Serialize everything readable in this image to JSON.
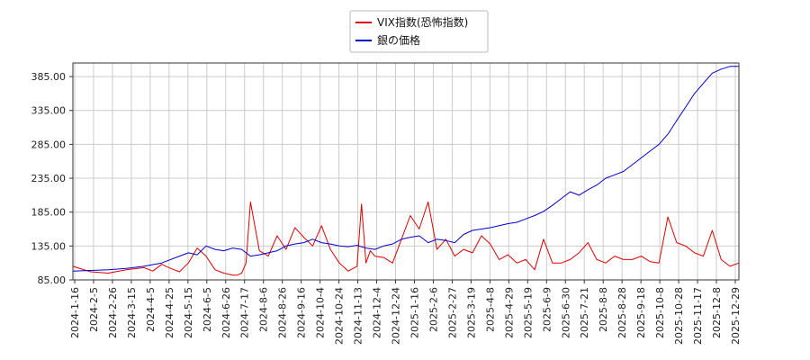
{
  "chart_data": {
    "type": "line",
    "title": "",
    "xlabel": "",
    "ylabel": "",
    "ylim": [
      85.0,
      405.0
    ],
    "y_ticks": [
      "85.00",
      "135.00",
      "185.00",
      "235.00",
      "285.00",
      "335.00",
      "385.00"
    ],
    "x_ticks": [
      "2024-1-16",
      "2024-2-5",
      "2024-2-26",
      "2024-3-15",
      "2024-4-5",
      "2024-4-25",
      "2024-5-15",
      "2024-6-5",
      "2024-6-26",
      "2024-7-17",
      "2024-8-6",
      "2024-8-26",
      "2024-9-16",
      "2024-10-4",
      "2024-10-24",
      "2024-11-13",
      "2024-12-4",
      "2024-12-24",
      "2025-1-16",
      "2025-2-6",
      "2025-2-27",
      "2025-3-19",
      "2025-4-8",
      "2025-4-29",
      "2025-5-19",
      "2025-6-9",
      "2025-6-30",
      "2025-7-21",
      "2025-8-8",
      "2025-8-28",
      "2025-9-18",
      "2025-10-8",
      "2025-10-28",
      "2025-11-17",
      "2025-12-8",
      "2025-12-29"
    ],
    "grid": true,
    "legend_position": "top-center",
    "series": [
      {
        "name": "VIX指数(恐怖指数)",
        "color": "#dd0000",
        "x": [
          0,
          2,
          4,
          6,
          8,
          9,
          10,
          11,
          12,
          13,
          14,
          15,
          16,
          17,
          18,
          18.5,
          19,
          19.5,
          20,
          21,
          22,
          23,
          24,
          25,
          26,
          27,
          28,
          29,
          30,
          31,
          32,
          32.5,
          33,
          33.5,
          34,
          35,
          36,
          37,
          38,
          39,
          40,
          41,
          42,
          43,
          44,
          45,
          46,
          47,
          48,
          49,
          50,
          51,
          52,
          53,
          54,
          55,
          56,
          57,
          58,
          59,
          60,
          61,
          62,
          63,
          64,
          65,
          66,
          67,
          68,
          69,
          70,
          71,
          72,
          73,
          74,
          75
        ],
        "values": [
          105,
          97,
          95,
          100,
          103,
          98,
          108,
          102,
          97,
          110,
          132,
          120,
          100,
          95,
          92,
          92,
          95,
          110,
          200,
          128,
          120,
          150,
          130,
          162,
          148,
          135,
          165,
          130,
          110,
          98,
          105,
          197,
          110,
          128,
          120,
          118,
          110,
          145,
          180,
          160,
          200,
          130,
          145,
          120,
          130,
          125,
          150,
          138,
          115,
          122,
          110,
          115,
          100,
          145,
          110,
          110,
          115,
          125,
          140,
          115,
          110,
          120,
          115,
          115,
          120,
          112,
          110,
          178,
          140,
          135,
          125,
          120,
          158,
          115,
          105,
          110
        ]
      },
      {
        "name": "銀の価格",
        "color": "#0000cc",
        "x": [
          0,
          2,
          4,
          6,
          8,
          10,
          12,
          13,
          14,
          15,
          16,
          17,
          18,
          19,
          20,
          21,
          22,
          23,
          24,
          25,
          26,
          27,
          28,
          29,
          30,
          31,
          32,
          33,
          34,
          35,
          36,
          37,
          38,
          39,
          40,
          41,
          42,
          43,
          44,
          45,
          46,
          47,
          48,
          49,
          50,
          51,
          52,
          53,
          54,
          55,
          56,
          57,
          58,
          59,
          60,
          61,
          62,
          63,
          64,
          65,
          66,
          67,
          68,
          69,
          70,
          71,
          72,
          73,
          74,
          75
        ],
        "values": [
          98,
          99,
          100,
          102,
          105,
          110,
          120,
          125,
          122,
          135,
          130,
          128,
          132,
          130,
          120,
          122,
          125,
          128,
          135,
          138,
          140,
          145,
          140,
          138,
          135,
          134,
          136,
          132,
          130,
          135,
          138,
          145,
          148,
          150,
          140,
          145,
          143,
          140,
          152,
          158,
          160,
          162,
          165,
          168,
          170,
          175,
          180,
          186,
          195,
          205,
          215,
          210,
          218,
          225,
          235,
          240,
          245,
          255,
          265,
          275,
          285,
          300,
          320,
          340,
          360,
          375,
          390,
          396,
          400,
          400
        ]
      }
    ]
  }
}
